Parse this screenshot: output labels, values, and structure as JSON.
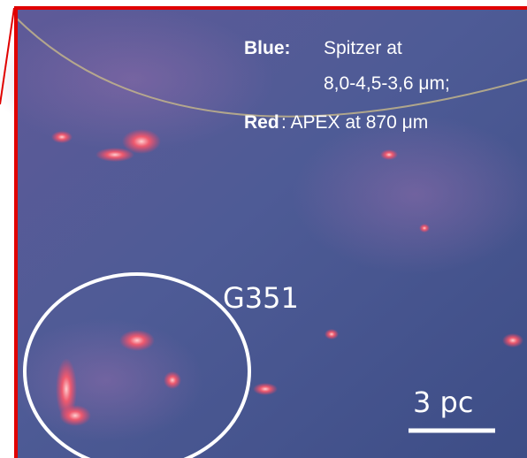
{
  "legend": {
    "blue_label": "Blue:",
    "blue_text_1": "Spitzer at",
    "blue_text_2": "8,0-4,5-3,6 μm;",
    "red_label": "Red",
    "red_text": ": APEX at 870 μm"
  },
  "region_label": "G351",
  "scale_bar_label": "3 pc"
}
